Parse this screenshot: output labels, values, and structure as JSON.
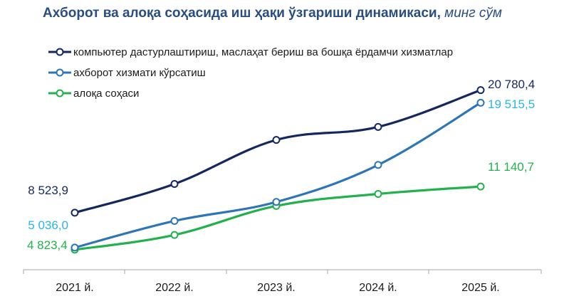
{
  "chart_data": {
    "type": "line",
    "title": "Ахборот ва алоқа соҳасида иш ҳақи ўзгариши динамикаси,",
    "title_unit": "минг сўм",
    "categories": [
      "2021 й.",
      "2022 й.",
      "2023 й.",
      "2024 й.",
      "2025 й."
    ],
    "ylim": [
      0,
      24000
    ],
    "grid": false,
    "legend_position": "top-left",
    "series": [
      {
        "name": "компьютер дастурлаштириш, маслаҳат бериш ва бошқа ёрдамчи хизматлар",
        "values": [
          8523.9,
          11400,
          15800,
          17100,
          20780.4
        ],
        "color": "#14285f",
        "start_label": "8 523,9",
        "end_label": "20 780,4"
      },
      {
        "name": "ахборот хизмати кўрсатиш",
        "values": [
          5036.0,
          7700,
          9600,
          13300,
          19515.5
        ],
        "color": "#2e75b6",
        "label_color": "#29b6e6",
        "start_label": "5 036,0",
        "end_label": "19 515,5"
      },
      {
        "name": "алоқа соҳаси",
        "values": [
          4823.4,
          6300,
          9200,
          10400,
          11140.7
        ],
        "color": "#22b14c",
        "start_label": "4 823,4",
        "end_label": "11 140,7"
      }
    ]
  }
}
